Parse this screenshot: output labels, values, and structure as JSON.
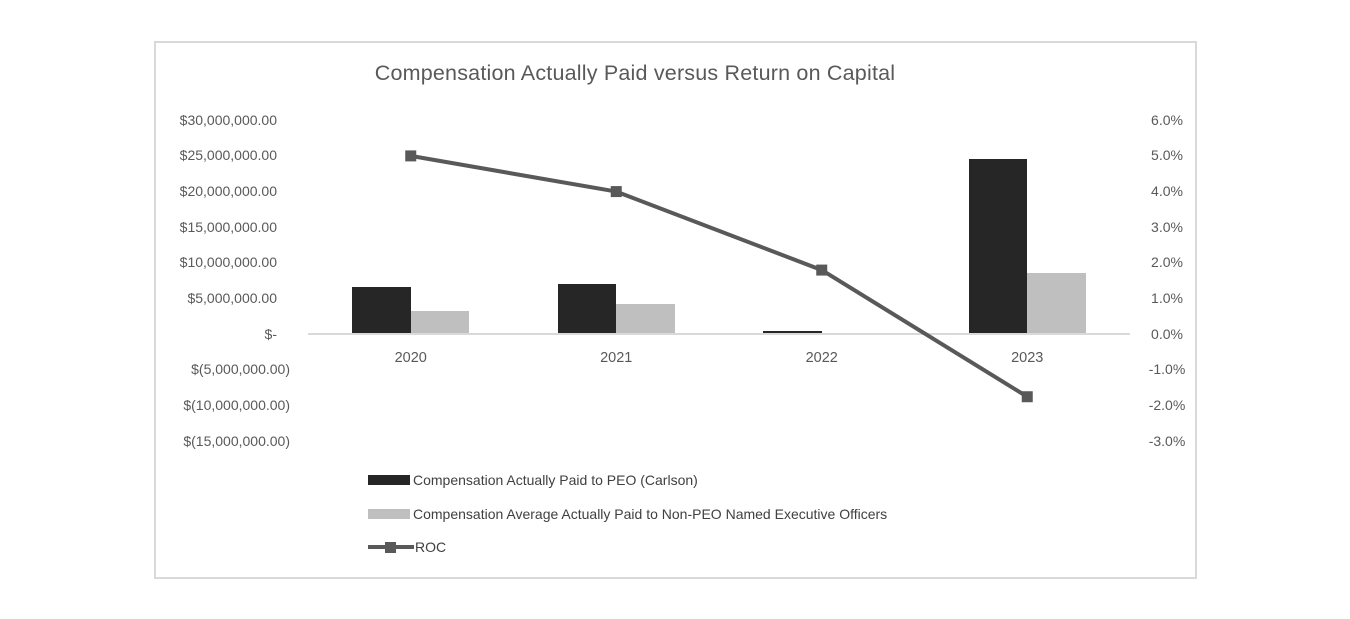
{
  "chart_data": {
    "type": "combo",
    "title": "Compensation Actually Paid versus Return on Capital",
    "categories": [
      "2020",
      "2021",
      "2022",
      "2023"
    ],
    "series": [
      {
        "name": "Compensation Actually Paid to PEO (Carlson)",
        "type": "bar",
        "axis": "left",
        "color": "#262626",
        "values": [
          6600000,
          7100000,
          500000,
          24500000
        ]
      },
      {
        "name": "Compensation Average Actually Paid to Non-PEO Named Executive Officers",
        "type": "bar",
        "axis": "left",
        "color": "#bfbfbf",
        "values": [
          3300000,
          4200000,
          0,
          8600000
        ]
      },
      {
        "name": "ROC",
        "type": "line",
        "axis": "right",
        "color": "#595959",
        "values": [
          5.0,
          4.0,
          1.8,
          -1.75
        ]
      }
    ],
    "left_axis": {
      "unit_per_tick": 5000000,
      "min": -15000000,
      "max": 30000000,
      "ticks": [
        {
          "label": "$30,000,000.00",
          "value": 30000000
        },
        {
          "label": "$25,000,000.00",
          "value": 25000000
        },
        {
          "label": "$20,000,000.00",
          "value": 20000000
        },
        {
          "label": "$15,000,000.00",
          "value": 15000000
        },
        {
          "label": "$10,000,000.00",
          "value": 10000000
        },
        {
          "label": "$5,000,000.00",
          "value": 5000000
        },
        {
          "label": "$-",
          "value": 0
        },
        {
          "label": "$(5,000,000.00)",
          "value": -5000000
        },
        {
          "label": "$(10,000,000.00)",
          "value": -10000000
        },
        {
          "label": "$(15,000,000.00)",
          "value": -15000000
        }
      ]
    },
    "right_axis": {
      "unit_per_tick": 1.0,
      "min": -3.0,
      "max": 6.0,
      "ticks": [
        {
          "label": "6.0%",
          "value": 6.0
        },
        {
          "label": "5.0%",
          "value": 5.0
        },
        {
          "label": "4.0%",
          "value": 4.0
        },
        {
          "label": "3.0%",
          "value": 3.0
        },
        {
          "label": "2.0%",
          "value": 2.0
        },
        {
          "label": "1.0%",
          "value": 1.0
        },
        {
          "label": "0.0%",
          "value": 0.0
        },
        {
          "label": "-1.0%",
          "value": -1.0
        },
        {
          "label": "-2.0%",
          "value": -2.0
        },
        {
          "label": "-3.0%",
          "value": -3.0
        }
      ]
    },
    "legend_position": "bottom-left",
    "grid": false,
    "colors": {
      "axis_line": "#d9d9d9",
      "chart_border": "#d9d9d9",
      "title_text": "#595959",
      "axis_text": "#595959",
      "legend_text": "#404040"
    }
  }
}
